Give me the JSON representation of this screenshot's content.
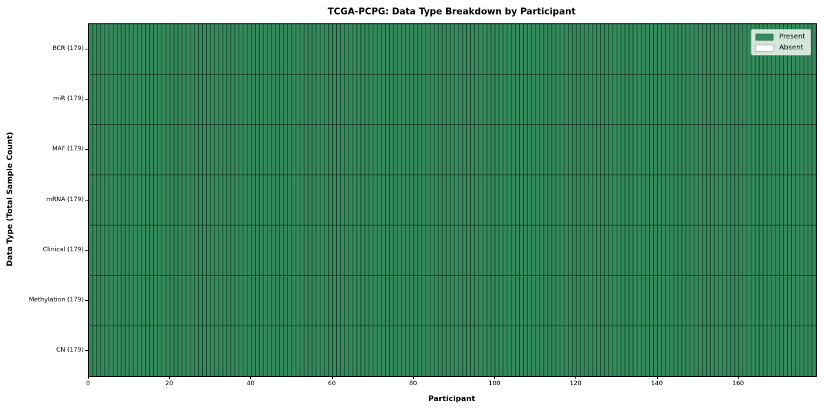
{
  "chart_data": {
    "type": "heatmap",
    "title": "TCGA-PCPG: Data Type Breakdown by Participant",
    "xlabel": "Participant",
    "ylabel": "Data Type (Total Sample Count)",
    "participants": 179,
    "x_range": [
      0,
      179
    ],
    "x_ticks": [
      0,
      20,
      40,
      60,
      80,
      100,
      120,
      140,
      160
    ],
    "rows": [
      {
        "label": "BCR (179)",
        "data_type": "BCR",
        "total_samples": 179,
        "present_count": 179,
        "absent_count": 0
      },
      {
        "label": "miR (179)",
        "data_type": "miR",
        "total_samples": 179,
        "present_count": 179,
        "absent_count": 0
      },
      {
        "label": "MAF (179)",
        "data_type": "MAF",
        "total_samples": 179,
        "present_count": 179,
        "absent_count": 0
      },
      {
        "label": "mRNA (179)",
        "data_type": "mRNA",
        "total_samples": 179,
        "present_count": 179,
        "absent_count": 0
      },
      {
        "label": "Clinical (179)",
        "data_type": "Clinical",
        "total_samples": 179,
        "present_count": 179,
        "absent_count": 0
      },
      {
        "label": "Methylation (179)",
        "data_type": "Methylation",
        "total_samples": 179,
        "present_count": 179,
        "absent_count": 0
      },
      {
        "label": "CN (179)",
        "data_type": "CN",
        "total_samples": 179,
        "present_count": 179,
        "absent_count": 0
      }
    ],
    "legend": {
      "position": "upper right",
      "entries": [
        {
          "label": "Present",
          "color": "#348a5b"
        },
        {
          "label": "Absent",
          "color": "#ffffff"
        }
      ]
    },
    "colors": {
      "present": "#348a5b",
      "absent": "#ffffff",
      "cell_edge": "#000000",
      "spine": "#000000"
    },
    "grid": false
  }
}
